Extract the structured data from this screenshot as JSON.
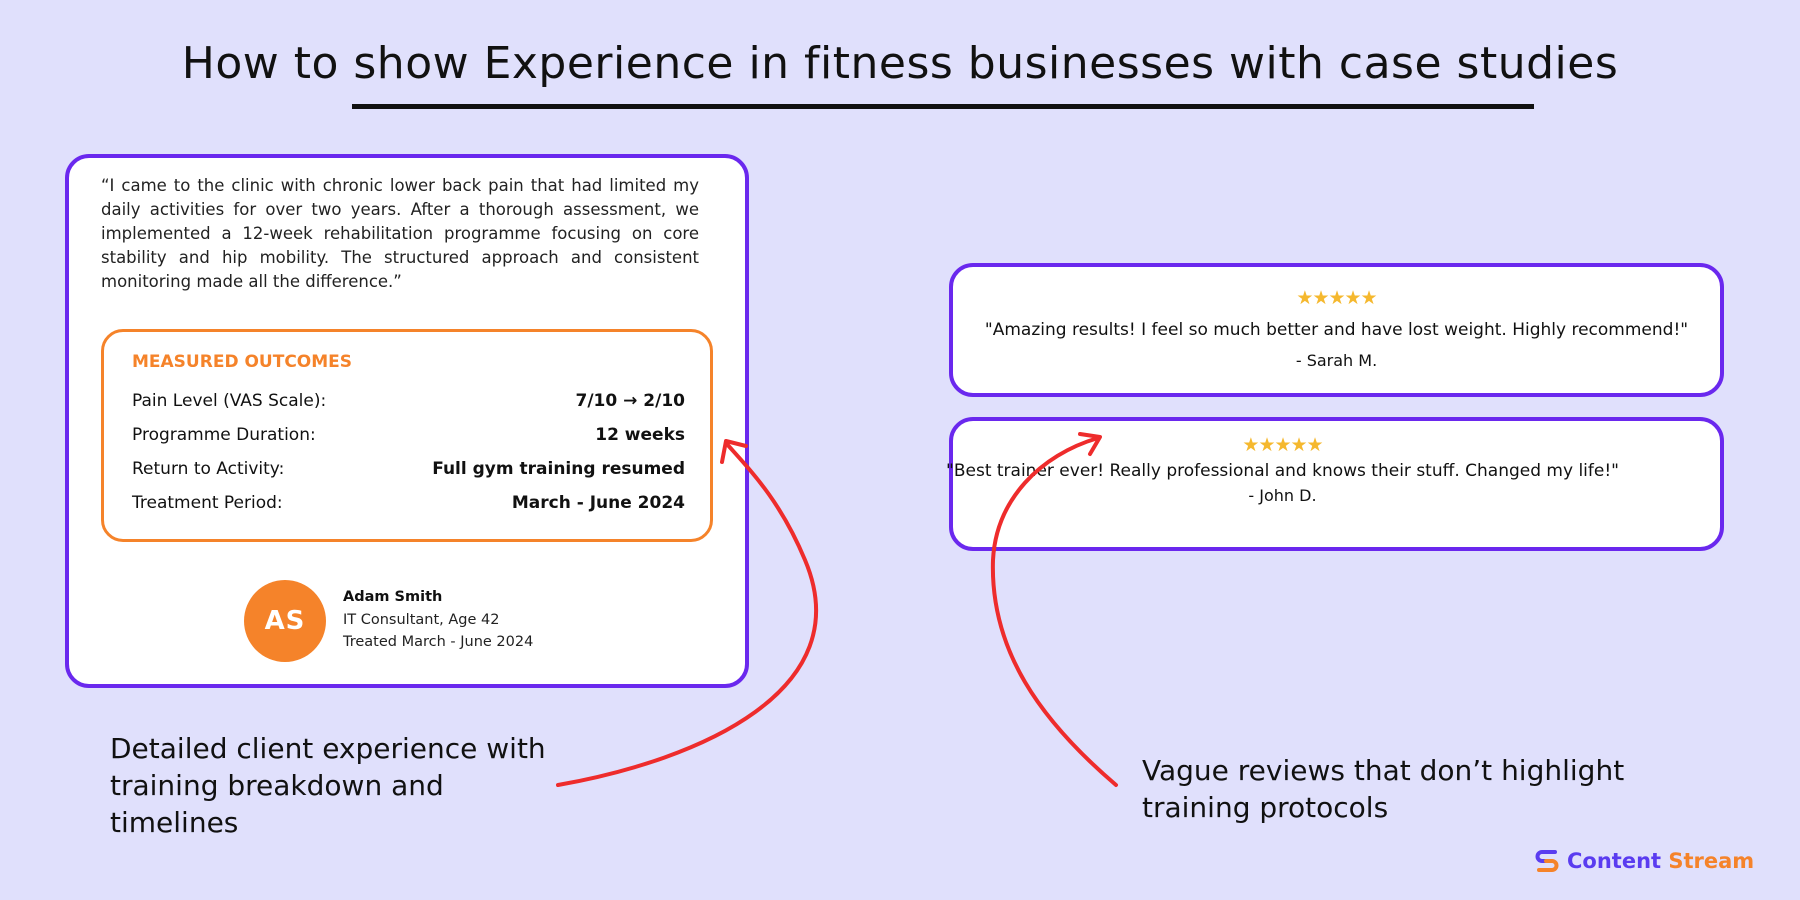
{
  "title": "How to show Experience in fitness businesses with case studies",
  "case_study": {
    "quote": "“I came to the clinic with chronic lower back pain that had limited my daily activities for over two years. After a thorough assessment, we implemented a 12-week rehabilitation programme focusing on core stability and hip mobility. The structured approach and consistent monitoring made all the difference.”",
    "outcomes_title": "MEASURED OUTCOMES",
    "outcomes": [
      {
        "label": "Pain Level (VAS Scale):",
        "value": "7/10 → 2/10"
      },
      {
        "label": "Programme Duration:",
        "value": "12 weeks"
      },
      {
        "label": "Return to Activity:",
        "value": "Full gym training resumed"
      },
      {
        "label": "Treatment Period:",
        "value": "March - June 2024"
      }
    ],
    "avatar_initials": "AS",
    "name": "Adam Smith",
    "role": "IT Consultant, Age 42",
    "treated": "Treated March - June 2024"
  },
  "reviews": [
    {
      "stars": "★★★★★",
      "rating": 5,
      "text": "\"Amazing results! I feel so much better and have lost weight. Highly recommend!\"",
      "author": "- Sarah M."
    },
    {
      "stars": "★★★★★",
      "rating": 5,
      "text": "\"Best trainer ever! Really professional and knows their stuff. Changed my life!\"",
      "author": "- John D."
    }
  ],
  "annotations": {
    "left": [
      "Detailed client experience with",
      "training breakdown and",
      "timelines"
    ],
    "right": [
      "Vague reviews that don’t highlight",
      "training protocols"
    ]
  },
  "logo": {
    "part1": "Content",
    "part2": "Stream"
  },
  "colors": {
    "accent_purple": "#6a28ee",
    "accent_orange": "#f5832a",
    "arrow_red": "#ee2c2c",
    "background": "#e0e0fc",
    "star": "#f5b82e"
  }
}
